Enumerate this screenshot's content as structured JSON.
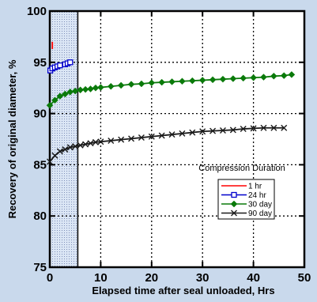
{
  "chart_data": {
    "type": "line",
    "xlabel": "Elapsed time after seal unloaded, Hrs",
    "ylabel": "Recovery of original diameter, %",
    "xlim": [
      0,
      50
    ],
    "ylim": [
      75,
      100
    ],
    "x_ticks": [
      "0",
      "10",
      "20",
      "30",
      "40",
      "50"
    ],
    "y_ticks": [
      "75",
      "80",
      "85",
      "90",
      "95",
      "100"
    ],
    "grid": "dotted",
    "shaded_region": {
      "x_from": 0,
      "x_to": 5.5
    },
    "legend": {
      "title": "Compression Duration",
      "placement": "bottom-right",
      "entries": [
        "1 hr",
        "24 hr",
        "30 day",
        "90 day"
      ]
    },
    "series": [
      {
        "name": "1 hr",
        "color": "#ff0000",
        "marker": "none",
        "x": [
          0.5,
          0.5
        ],
        "y": [
          96.3,
          97.0
        ]
      },
      {
        "name": "24 hr",
        "color": "#0000cc",
        "marker": "square",
        "x": [
          0.1,
          0.5,
          1.0,
          1.5,
          2.0,
          3.0,
          3.5,
          4.0
        ],
        "y": [
          94.2,
          94.4,
          94.5,
          94.6,
          94.7,
          94.8,
          94.9,
          95.0
        ]
      },
      {
        "name": "30 day",
        "color": "#0a7a0a",
        "marker": "diamond",
        "x": [
          0,
          1,
          2,
          3,
          4,
          5,
          6,
          7,
          8,
          9,
          10,
          12,
          14,
          16,
          18,
          20,
          22,
          24,
          26,
          28,
          30,
          32,
          34,
          36,
          38,
          40,
          42,
          44,
          46,
          47.5
        ],
        "y": [
          90.8,
          91.3,
          91.7,
          91.9,
          92.1,
          92.2,
          92.3,
          92.35,
          92.4,
          92.5,
          92.55,
          92.65,
          92.75,
          92.85,
          92.9,
          93.0,
          93.05,
          93.1,
          93.15,
          93.2,
          93.25,
          93.3,
          93.35,
          93.4,
          93.45,
          93.5,
          93.55,
          93.65,
          93.7,
          93.8
        ]
      },
      {
        "name": "90 day",
        "color": "#1a1a1a",
        "marker": "x",
        "x": [
          0,
          1,
          2,
          3,
          4,
          5,
          6,
          7,
          8,
          9,
          10,
          12,
          14,
          16,
          18,
          20,
          22,
          24,
          26,
          28,
          30,
          32,
          34,
          36,
          38,
          40,
          42,
          44,
          46
        ],
        "y": [
          85.3,
          85.9,
          86.3,
          86.5,
          86.7,
          86.8,
          86.9,
          87.0,
          87.1,
          87.2,
          87.25,
          87.35,
          87.45,
          87.55,
          87.65,
          87.75,
          87.85,
          87.95,
          88.05,
          88.15,
          88.25,
          88.3,
          88.35,
          88.4,
          88.5,
          88.55,
          88.6,
          88.6,
          88.6
        ]
      }
    ]
  }
}
